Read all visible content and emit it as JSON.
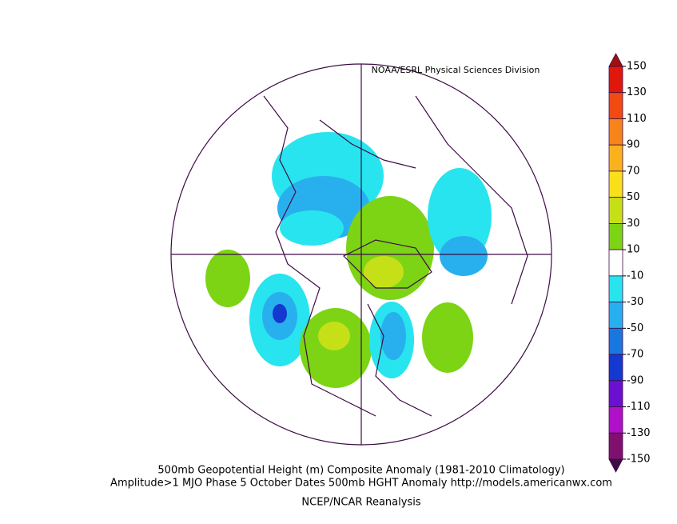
{
  "header": "NOAA/ESRL Physical Sciences Division",
  "colorbar": {
    "ticks": [
      150,
      130,
      110,
      90,
      70,
      50,
      30,
      10,
      -10,
      -30,
      -50,
      -70,
      -90,
      -110,
      -130,
      -150
    ],
    "colors": [
      "#e0180c",
      "#f24a10",
      "#f6841a",
      "#f9b21c",
      "#f8e01a",
      "#c6e018",
      "#7cd414",
      "#ffffff",
      "#28e4ee",
      "#28b0ee",
      "#1878e0",
      "#1438d0",
      "#6a10d0",
      "#b010c8",
      "#80106e"
    ],
    "over_color": "#a01010",
    "under_color": "#3c0c44"
  },
  "caption": {
    "line1": "500mb Geopotential Height (m) Composite Anomaly (1981-2010 Climatology)",
    "line2": "Amplitude>1 MJO Phase 5 October Dates 500mb HGHT Anomaly http://models.americanwx.com",
    "line3": "NCEP/NCAR Reanalysis"
  }
}
